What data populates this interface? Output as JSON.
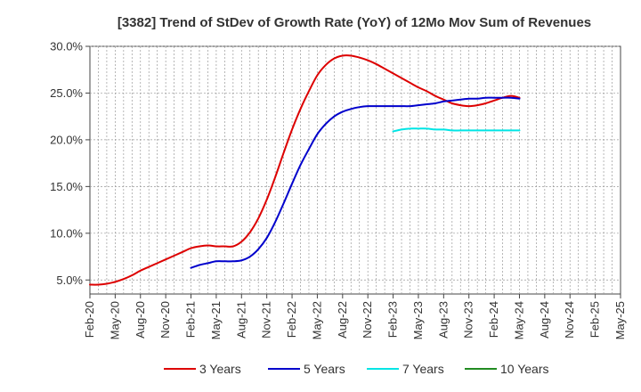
{
  "chart_data": {
    "type": "line",
    "title": "[3382]  Trend of StDev of Growth Rate (YoY) of 12Mo Mov Sum of Revenues",
    "xlabel": "",
    "ylabel": "",
    "ylim": [
      3.5,
      30.0
    ],
    "yticks": [
      5.0,
      10.0,
      15.0,
      20.0,
      25.0,
      30.0
    ],
    "ytick_labels": [
      "5.0%",
      "10.0%",
      "15.0%",
      "20.0%",
      "25.0%",
      "30.0%"
    ],
    "x_start": "Feb-20",
    "x_end": "May-25",
    "xtick_labels": [
      "Feb-20",
      "May-20",
      "Aug-20",
      "Nov-20",
      "Feb-21",
      "May-21",
      "Aug-21",
      "Nov-21",
      "Feb-22",
      "May-22",
      "Aug-22",
      "Nov-22",
      "Feb-23",
      "May-23",
      "Aug-23",
      "Nov-23",
      "Feb-24",
      "May-24",
      "Aug-24",
      "Nov-24",
      "Feb-25",
      "May-25"
    ],
    "grid": true,
    "legend_position": "bottom",
    "series": [
      {
        "name": "3 Years",
        "color": "#dd0000",
        "start_month_index": 0,
        "values": [
          4.5,
          4.5,
          4.6,
          4.8,
          5.1,
          5.5,
          6.0,
          6.4,
          6.8,
          7.2,
          7.6,
          8.0,
          8.4,
          8.6,
          8.7,
          8.6,
          8.6,
          8.6,
          9.1,
          10.1,
          11.6,
          13.6,
          16.0,
          18.6,
          21.1,
          23.3,
          25.2,
          26.9,
          28.0,
          28.7,
          29.0,
          29.0,
          28.8,
          28.5,
          28.1,
          27.6,
          27.1,
          26.6,
          26.1,
          25.6,
          25.2,
          24.7,
          24.3,
          23.9,
          23.7,
          23.6,
          23.7,
          23.9,
          24.2,
          24.5,
          24.7,
          24.5
        ]
      },
      {
        "name": "5 Years",
        "color": "#0000cc",
        "start_month_index": 12,
        "values": [
          6.3,
          6.6,
          6.8,
          7.0,
          7.0,
          7.0,
          7.1,
          7.5,
          8.3,
          9.5,
          11.2,
          13.2,
          15.3,
          17.3,
          19.0,
          20.6,
          21.7,
          22.5,
          23.0,
          23.3,
          23.5,
          23.6,
          23.6,
          23.6,
          23.6,
          23.6,
          23.6,
          23.7,
          23.8,
          23.9,
          24.1,
          24.2,
          24.3,
          24.4,
          24.4,
          24.5,
          24.5,
          24.5,
          24.5,
          24.4
        ]
      },
      {
        "name": "7 Years",
        "color": "#00e5e5",
        "start_month_index": 36,
        "values": [
          20.9,
          21.1,
          21.2,
          21.2,
          21.2,
          21.1,
          21.1,
          21.0,
          21.0,
          21.0,
          21.0,
          21.0,
          21.0,
          21.0,
          21.0,
          21.0
        ]
      },
      {
        "name": "10 Years",
        "color": "#228b22",
        "start_month_index": 0,
        "values": []
      }
    ]
  }
}
